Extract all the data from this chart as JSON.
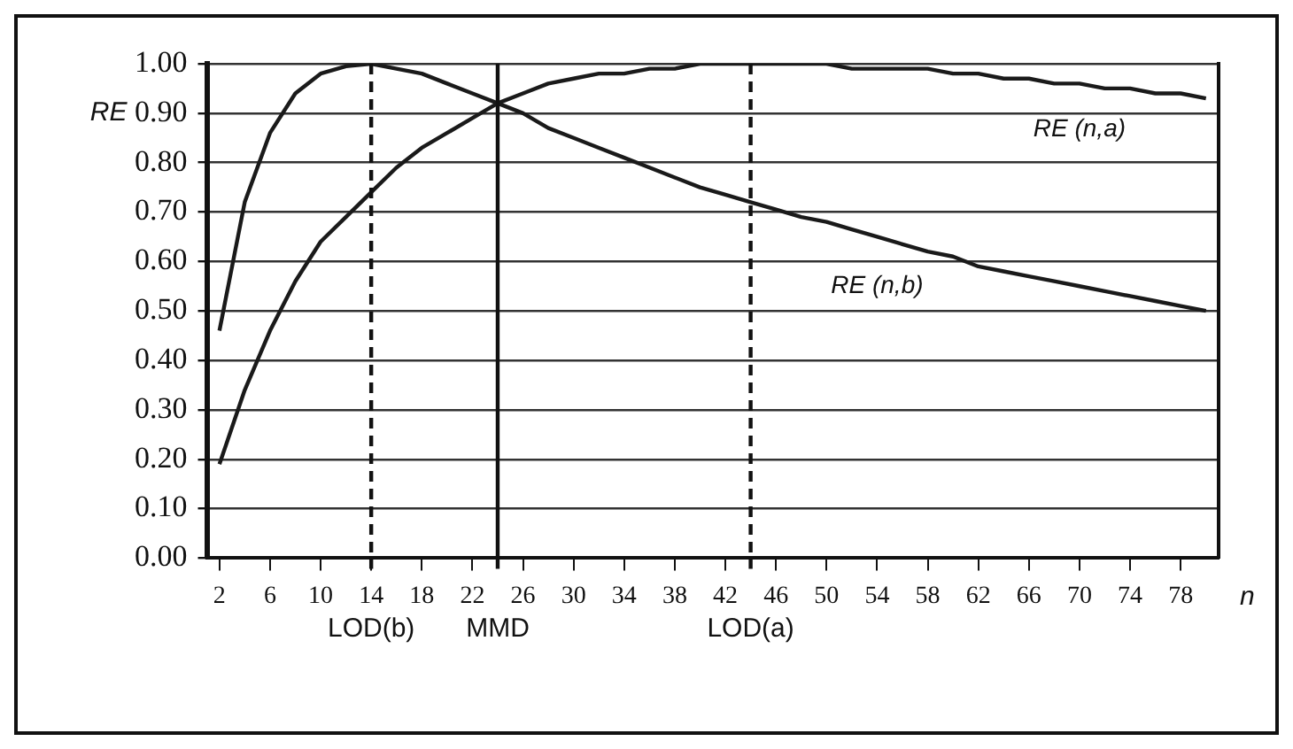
{
  "chart_data": {
    "type": "line",
    "xlabel": "n",
    "ylabel": "RE",
    "x": [
      2,
      4,
      6,
      8,
      10,
      12,
      14,
      16,
      18,
      20,
      22,
      24,
      26,
      28,
      30,
      32,
      34,
      36,
      38,
      40,
      42,
      44,
      46,
      48,
      50,
      52,
      54,
      56,
      58,
      60,
      62,
      64,
      66,
      68,
      70,
      72,
      74,
      76,
      78,
      80
    ],
    "series": [
      {
        "name": "RE (n,a)",
        "color": "#1a1a1a",
        "values": [
          0.19,
          0.34,
          0.46,
          0.56,
          0.64,
          0.69,
          0.74,
          0.79,
          0.83,
          0.86,
          0.89,
          0.92,
          0.94,
          0.96,
          0.97,
          0.98,
          0.98,
          0.99,
          0.99,
          1.0,
          1.0,
          1.0,
          1.0,
          1.0,
          1.0,
          0.99,
          0.99,
          0.99,
          0.99,
          0.98,
          0.98,
          0.97,
          0.97,
          0.96,
          0.96,
          0.95,
          0.95,
          0.94,
          0.94,
          0.93
        ]
      },
      {
        "name": "RE (n,b)",
        "color": "#1a1a1a",
        "values": [
          0.46,
          0.72,
          0.86,
          0.94,
          0.98,
          0.995,
          1.0,
          0.99,
          0.98,
          0.96,
          0.94,
          0.92,
          0.9,
          0.87,
          0.85,
          0.83,
          0.81,
          0.79,
          0.77,
          0.75,
          0.735,
          0.72,
          0.705,
          0.69,
          0.68,
          0.665,
          0.65,
          0.635,
          0.62,
          0.61,
          0.59,
          0.58,
          0.57,
          0.56,
          0.55,
          0.54,
          0.53,
          0.52,
          0.51,
          0.5
        ]
      }
    ],
    "xlim": [
      1,
      81
    ],
    "xticks": [
      2,
      6,
      10,
      14,
      18,
      22,
      26,
      30,
      34,
      38,
      42,
      46,
      50,
      54,
      58,
      62,
      66,
      70,
      74,
      78
    ],
    "ylim": [
      0,
      1
    ],
    "yticks": [
      {
        "value": 0,
        "label": "0.00"
      },
      {
        "value": 0.1,
        "label": "0.10"
      },
      {
        "value": 0.2,
        "label": "0.20"
      },
      {
        "value": 0.3,
        "label": "0.30"
      },
      {
        "value": 0.4,
        "label": "0.40"
      },
      {
        "value": 0.5,
        "label": "0.50"
      },
      {
        "value": 0.6,
        "label": "0.60"
      },
      {
        "value": 0.7,
        "label": "0.70"
      },
      {
        "value": 0.8,
        "label": "0.80"
      },
      {
        "value": 0.9,
        "label": "0.90"
      },
      {
        "value": 1,
        "label": "1.00"
      }
    ],
    "ref_lines": [
      {
        "axis": "x",
        "value": 14,
        "label": "LOD(b)",
        "line_style": "dashed"
      },
      {
        "axis": "x",
        "value": 24,
        "label": "MMD",
        "line_style": "solid"
      },
      {
        "axis": "x",
        "value": 44,
        "label": "LOD(a)",
        "line_style": "dashed"
      }
    ],
    "grid": "y",
    "legend": false,
    "marker": "none",
    "line_style": "solid"
  }
}
